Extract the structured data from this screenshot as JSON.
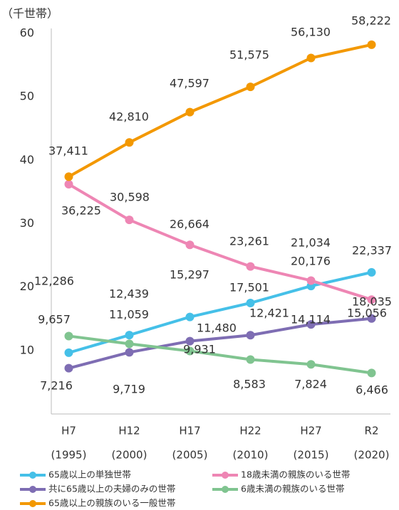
{
  "chart_data": {
    "type": "line",
    "y_label": "（千世帯）",
    "categories": [
      "H7",
      "H12",
      "H17",
      "H22",
      "H27",
      "R2"
    ],
    "category_years": [
      "(1995)",
      "(2000)",
      "(2005)",
      "(2010)",
      "(2015)",
      "(2020)"
    ],
    "ylim": [
      0,
      60
    ],
    "yticks": [
      10,
      20,
      30,
      40,
      50,
      60
    ],
    "grid": false,
    "series": [
      {
        "name": "65歳以上の単独世帯",
        "color": "#45c0e8",
        "label_color": "#1cb2e0",
        "values": [
          9.657,
          12.439,
          15.297,
          17.501,
          20.176,
          22.337
        ],
        "value_labels": [
          "9,657",
          "12,439",
          "15,297",
          "17,501",
          "20,176",
          "22,337"
        ]
      },
      {
        "name": "18歳未満の親族のいる世帯",
        "color": "#ee86b4",
        "label_color": "#e8639d",
        "values": [
          36.225,
          30.598,
          26.664,
          23.261,
          21.034,
          18.035
        ],
        "value_labels": [
          "36,225",
          "30,598",
          "26,664",
          "23,261",
          "21,034",
          "18,035"
        ]
      },
      {
        "name": "共に65歳以上の夫婦のみの世帯",
        "color": "#7e6db3",
        "label_color": "#6a58a8",
        "values": [
          7.216,
          9.719,
          11.48,
          12.421,
          14.114,
          15.056
        ],
        "value_labels": [
          "7,216",
          "9,719",
          "11,480",
          "12,421",
          "14,114",
          "15,056"
        ]
      },
      {
        "name": "6歳未満の親族のいる世帯",
        "color": "#80c490",
        "label_color": "#1da765",
        "values": [
          12.286,
          11.059,
          9.931,
          8.583,
          7.824,
          6.466
        ],
        "value_labels": [
          "12,286",
          "11,059",
          "9,931",
          "8,583",
          "7,824",
          "6,466"
        ]
      },
      {
        "name": "65歳以上の親族のいる一般世帯",
        "color": "#f39800",
        "label_color": "#f0a21e",
        "values": [
          37.411,
          42.81,
          47.597,
          51.575,
          56.13,
          58.222
        ],
        "value_labels": [
          "37,411",
          "42,810",
          "47,597",
          "51,575",
          "56,130",
          "58,222"
        ]
      }
    ]
  }
}
